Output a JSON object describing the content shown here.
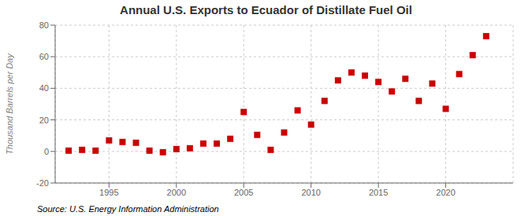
{
  "chart_data": {
    "type": "scatter",
    "title": "Annual U.S. Exports to Ecuador of Distillate Fuel Oil",
    "ylabel": "Thousand Barrels per Day",
    "annotations": [
      "Source: U.S. Energy Information Administration"
    ],
    "x": [
      1992,
      1993,
      1994,
      1995,
      1996,
      1997,
      1998,
      1999,
      2000,
      2001,
      2002,
      2003,
      2004,
      2005,
      2006,
      2007,
      2008,
      2009,
      2010,
      2011,
      2012,
      2013,
      2014,
      2015,
      2016,
      2017,
      2018,
      2019,
      2020,
      2021,
      2022,
      2023
    ],
    "values": [
      0.5,
      1.0,
      0.5,
      7.0,
      6.0,
      5.5,
      0.5,
      -0.5,
      1.5,
      2.0,
      5.0,
      5.0,
      8.0,
      25.0,
      10.5,
      1.0,
      12.0,
      26.0,
      17.0,
      32.0,
      45.0,
      50.0,
      48.0,
      44.0,
      38.0,
      46.0,
      32.0,
      43.0,
      27.0,
      49.0,
      61.0,
      73.0
    ],
    "color": "#cc0000",
    "marker": "square",
    "xlim": [
      1991,
      2025
    ],
    "xticks": [
      1995,
      2000,
      2005,
      2010,
      2015,
      2020
    ],
    "ylim": [
      -20,
      80
    ],
    "yticks": [
      -20,
      0,
      20,
      40,
      60,
      80
    ],
    "grid": true
  }
}
